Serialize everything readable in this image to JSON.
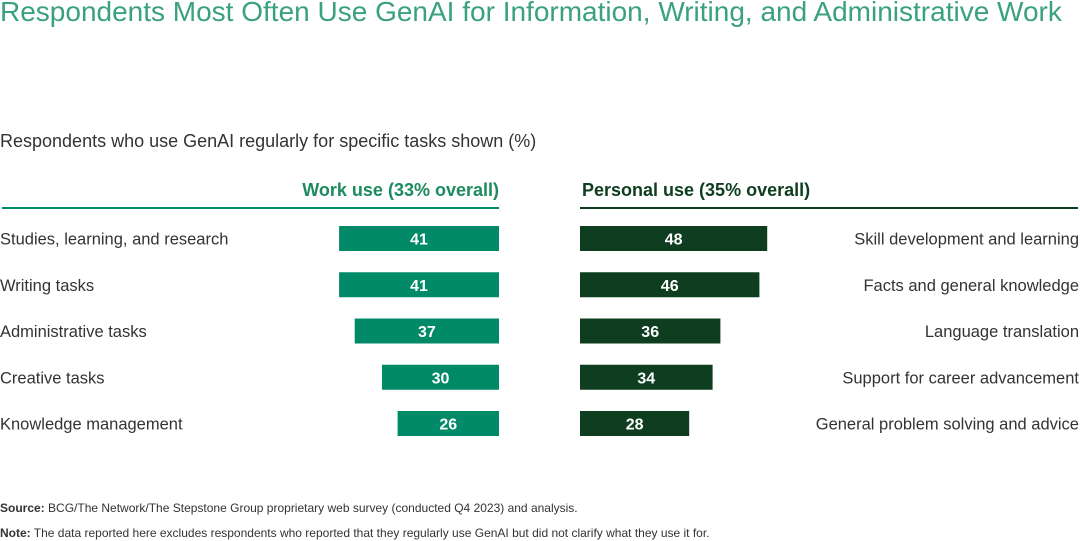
{
  "title": "Respondents Most Often Use GenAI for Information, Writing, and Administrative Work",
  "subtitle": "Respondents who use GenAI regularly for specific tasks shown (%)",
  "colors": {
    "title": "#3aa17e",
    "work_bar": "#008a67",
    "personal_bar": "#0e3e1f",
    "work_header": "#1d8a5f",
    "personal_header": "#0e3e1f",
    "text": "#333333"
  },
  "chart_data": {
    "type": "bar",
    "orientation": "horizontal",
    "layout": "back-to-back",
    "xlim": [
      0,
      50
    ],
    "series": [
      {
        "name": "Work use (33% overall)",
        "side": "left",
        "categories": [
          "Studies, learning, and research",
          "Writing tasks",
          "Administrative tasks",
          "Creative tasks",
          "Knowledge management"
        ],
        "values": [
          41,
          41,
          37,
          30,
          26
        ]
      },
      {
        "name": "Personal use (35% overall)",
        "side": "right",
        "categories": [
          "Skill development and learning",
          "Facts and general knowledge",
          "Language translation",
          "Support for career advancement",
          "General problem solving and advice"
        ],
        "values": [
          48,
          46,
          36,
          34,
          28
        ]
      }
    ]
  },
  "source": {
    "label": "Source:",
    "text": "BCG/The Network/The Stepstone Group proprietary web survey (conducted Q4 2023) and analysis."
  },
  "note": {
    "label": "Note:",
    "text": "The data reported here excludes respondents who reported that they regularly use GenAI but did not clarify what they use it for."
  }
}
